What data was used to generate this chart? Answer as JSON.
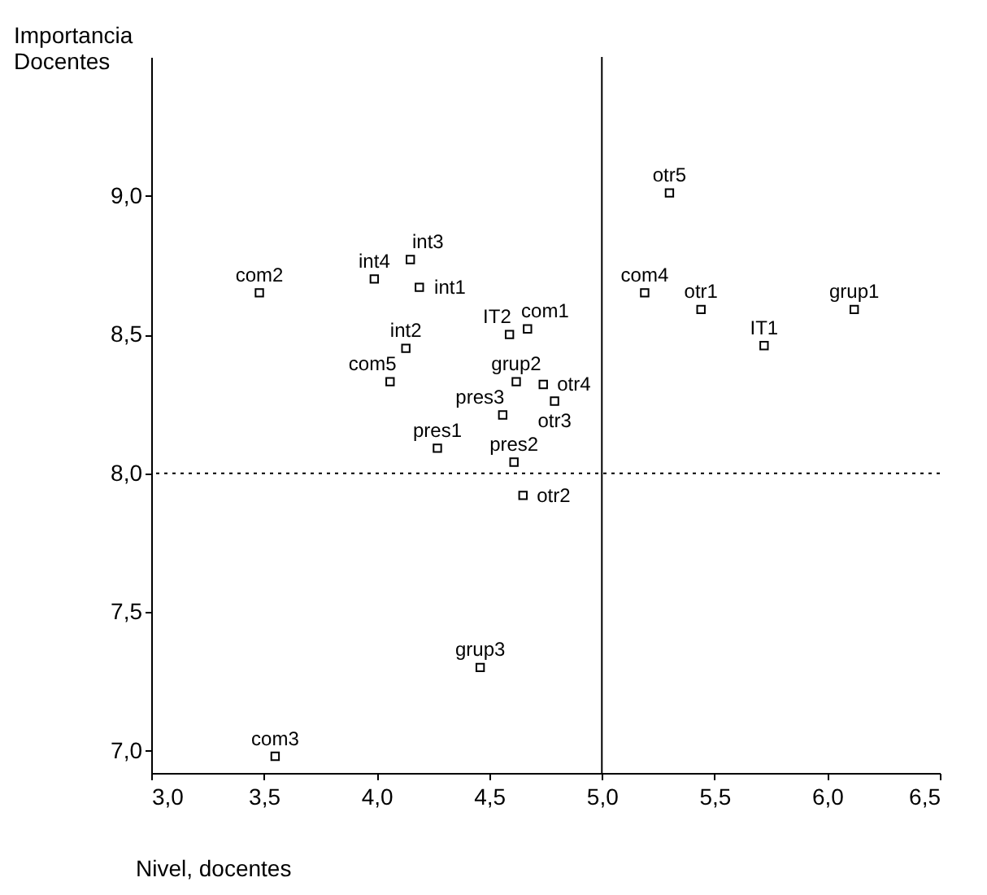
{
  "chart_data": {
    "type": "scatter",
    "xlabel": "Nivel, docentes",
    "ylabel": "Importancia\nDocentes",
    "x": [
      3.48,
      3.99,
      4.15,
      4.19,
      4.59,
      4.67,
      4.13,
      4.06,
      4.62,
      4.74,
      4.79,
      4.56,
      4.27,
      4.61,
      4.65,
      5.3,
      5.19,
      5.44,
      5.72,
      6.12,
      4.46,
      3.55
    ],
    "values": [
      8.65,
      8.7,
      8.77,
      8.67,
      8.5,
      8.52,
      8.45,
      8.33,
      8.33,
      8.32,
      8.26,
      8.21,
      8.09,
      8.04,
      7.92,
      9.01,
      8.65,
      8.59,
      8.46,
      8.59,
      7.3,
      6.98
    ],
    "color": "#000000",
    "marker": "square",
    "annotations": [
      {
        "text": "com2",
        "x": 3.48,
        "y": 8.65
      },
      {
        "text": "int4",
        "x": 3.99,
        "y": 8.7
      },
      {
        "text": "int3",
        "x": 4.15,
        "y": 8.77
      },
      {
        "text": "int1",
        "x": 4.19,
        "y": 8.67
      },
      {
        "text": "IT2",
        "x": 4.59,
        "y": 8.5
      },
      {
        "text": "com1",
        "x": 4.67,
        "y": 8.52
      },
      {
        "text": "int2",
        "x": 4.13,
        "y": 8.45
      },
      {
        "text": "com5",
        "x": 4.06,
        "y": 8.33
      },
      {
        "text": "grup2",
        "x": 4.62,
        "y": 8.33
      },
      {
        "text": "otr4",
        "x": 4.74,
        "y": 8.32
      },
      {
        "text": "otr3",
        "x": 4.79,
        "y": 8.26
      },
      {
        "text": "pres3",
        "x": 4.56,
        "y": 8.21
      },
      {
        "text": "pres1",
        "x": 4.27,
        "y": 8.09
      },
      {
        "text": "pres2",
        "x": 4.61,
        "y": 8.04
      },
      {
        "text": "otr2",
        "x": 4.65,
        "y": 7.92
      },
      {
        "text": "otr5",
        "x": 5.3,
        "y": 9.01
      },
      {
        "text": "com4",
        "x": 5.19,
        "y": 8.65
      },
      {
        "text": "otr1",
        "x": 5.44,
        "y": 8.59
      },
      {
        "text": "IT1",
        "x": 5.72,
        "y": 8.46
      },
      {
        "text": "grup1",
        "x": 6.12,
        "y": 8.59
      },
      {
        "text": "grup3",
        "x": 4.46,
        "y": 7.3
      },
      {
        "text": "com3",
        "x": 3.55,
        "y": 6.98
      }
    ],
    "xlim": [
      3.0,
      6.5
    ],
    "xticks": [
      {
        "value": 3.0,
        "label": "3,0"
      },
      {
        "value": 3.5,
        "label": "3,5"
      },
      {
        "value": 4.0,
        "label": "4,0"
      },
      {
        "value": 4.5,
        "label": "4,5"
      },
      {
        "value": 5.0,
        "label": "5,0"
      },
      {
        "value": 5.5,
        "label": "5,5"
      },
      {
        "value": 6.0,
        "label": "6,0"
      },
      {
        "value": 6.5,
        "label": "6,5"
      }
    ],
    "ylim": [
      6.92,
      9.5
    ],
    "yticks": [
      {
        "value": 7.0,
        "label": "7,0"
      },
      {
        "value": 7.5,
        "label": "7,5"
      },
      {
        "value": 8.0,
        "label": "8,0"
      },
      {
        "value": 8.5,
        "label": "8,5"
      },
      {
        "value": 9.0,
        "label": "9,0"
      }
    ],
    "ref_lines": [
      {
        "axis": "x",
        "value": 5.0,
        "color": "#000000",
        "line_style": "solid"
      },
      {
        "axis": "y",
        "value": 8.0,
        "color": "#000000",
        "line_style": "dotted"
      }
    ],
    "grid": false
  }
}
